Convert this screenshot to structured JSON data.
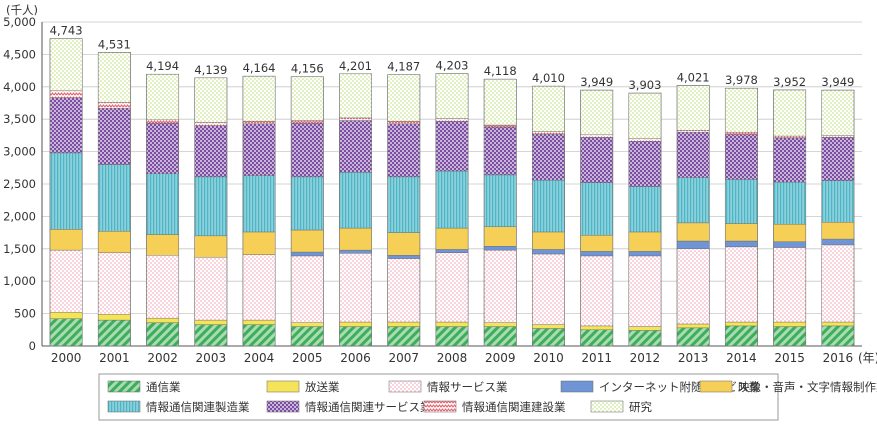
{
  "chart_data": {
    "type": "bar",
    "stacked": true,
    "y_unit_label": "(千人)",
    "x_unit_label": "(年)",
    "ylim": [
      0,
      5000
    ],
    "yticks": [
      "0",
      "500",
      "1,000",
      "1,500",
      "2,000",
      "2,500",
      "3,000",
      "3,500",
      "4,000",
      "4,500",
      "5,000"
    ],
    "ytick_values": [
      0,
      500,
      1000,
      1500,
      2000,
      2500,
      3000,
      3500,
      4000,
      4500,
      5000
    ],
    "grid": true,
    "legend_position": "bottom",
    "categories": [
      "2000",
      "2001",
      "2002",
      "2003",
      "2004",
      "2005",
      "2006",
      "2007",
      "2008",
      "2009",
      "2010",
      "2011",
      "2012",
      "2013",
      "2014",
      "2015",
      "2016"
    ],
    "totals": [
      4743,
      4531,
      4194,
      4139,
      4164,
      4156,
      4201,
      4187,
      4203,
      4118,
      4010,
      3949,
      3903,
      4021,
      3978,
      3952,
      3949
    ],
    "total_labels": [
      "4,743",
      "4,531",
      "4,194",
      "4,139",
      "4,164",
      "4,156",
      "4,201",
      "4,187",
      "4,203",
      "4,118",
      "4,010",
      "3,949",
      "3,903",
      "4,021",
      "3,978",
      "3,952",
      "3,949"
    ],
    "series": [
      {
        "name": "通信業",
        "color": "#3fae5a",
        "pattern": "diag",
        "values": [
          420,
          400,
          360,
          330,
          330,
          300,
          300,
          300,
          300,
          300,
          270,
          250,
          240,
          280,
          310,
          300,
          310
        ]
      },
      {
        "name": "放送業",
        "color": "#f5e35a",
        "pattern": "solid",
        "values": [
          100,
          90,
          70,
          70,
          70,
          60,
          70,
          70,
          70,
          60,
          60,
          60,
          60,
          60,
          60,
          70,
          60
        ]
      },
      {
        "name": "情報サービス業",
        "color": "#f7b6c4",
        "pattern": "dots",
        "values": [
          960,
          950,
          970,
          970,
          1010,
          1030,
          1060,
          980,
          1070,
          1120,
          1090,
          1080,
          1090,
          1160,
          1160,
          1150,
          1190
        ]
      },
      {
        "name": "インターネット附随サービス業",
        "color": "#6f95d6",
        "pattern": "solid",
        "values": [
          0,
          0,
          0,
          0,
          0,
          60,
          50,
          50,
          50,
          60,
          70,
          70,
          70,
          120,
          90,
          90,
          90
        ]
      },
      {
        "name": "映像・音声・文字情報制作業",
        "color": "#f6cf57",
        "pattern": "solid",
        "values": [
          320,
          330,
          320,
          330,
          350,
          340,
          340,
          350,
          330,
          300,
          270,
          250,
          300,
          280,
          270,
          270,
          260
        ]
      },
      {
        "name": "情報通信関連製造業",
        "color": "#4db5c6",
        "pattern": "vlines",
        "values": [
          1180,
          1030,
          940,
          910,
          870,
          820,
          860,
          860,
          880,
          800,
          800,
          810,
          700,
          700,
          680,
          650,
          640
        ]
      },
      {
        "name": "情報通信関連サービス業",
        "color": "#7b4ea3",
        "pattern": "dots",
        "values": [
          850,
          870,
          780,
          790,
          800,
          830,
          800,
          820,
          770,
          740,
          710,
          700,
          700,
          700,
          690,
          680,
          670
        ]
      },
      {
        "name": "情報通信関連建設業",
        "color": "#e8606b",
        "pattern": "zigzag",
        "values": [
          110,
          90,
          50,
          50,
          40,
          40,
          40,
          40,
          40,
          30,
          40,
          40,
          40,
          30,
          40,
          30,
          30
        ]
      },
      {
        "name": "研究",
        "color": "#cde79a",
        "pattern": "dots",
        "values": [
          803,
          771,
          704,
          689,
          694,
          676,
          681,
          717,
          693,
          708,
          700,
          689,
          703,
          691,
          678,
          712,
          699
        ]
      }
    ]
  }
}
